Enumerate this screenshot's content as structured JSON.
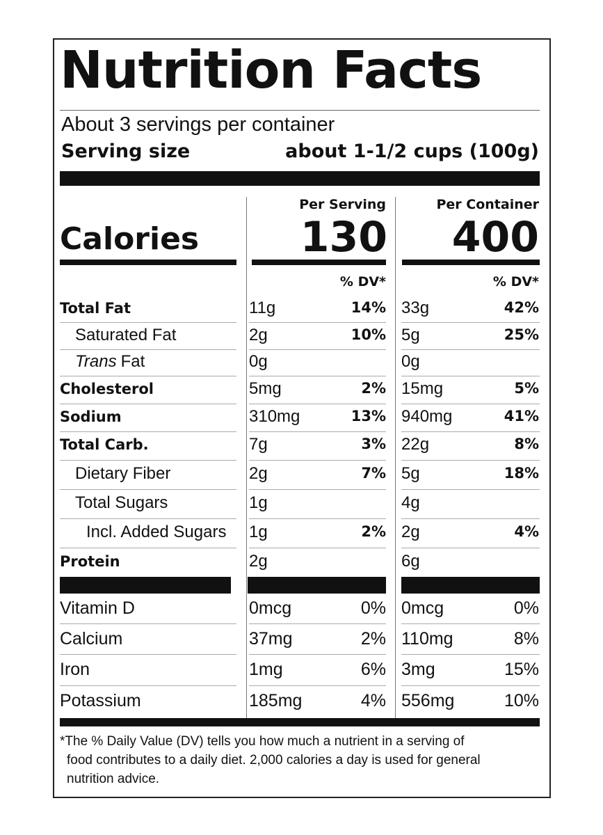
{
  "title": "Nutrition Facts",
  "servings": "About 3 servings per container",
  "serving_size": {
    "label": "Serving size",
    "value": "about 1-1/2 cups (100g)"
  },
  "calories_label": "Calories",
  "columns": [
    {
      "header": "Per Serving",
      "calories": "130"
    },
    {
      "header": "Per Container",
      "calories": "400"
    }
  ],
  "dv_header": "% DV*",
  "nutrients": [
    {
      "name": "Total Fat",
      "serving": [
        "11g",
        "14%"
      ],
      "container": [
        "33g",
        "42%"
      ]
    },
    {
      "name": "Saturated Fat",
      "serving": [
        "2g",
        "10%"
      ],
      "container": [
        "5g",
        "25%"
      ]
    },
    {
      "name_italic": "Trans",
      "name": "Fat",
      "serving": [
        "0g"
      ],
      "container": [
        "0g"
      ]
    },
    {
      "name": "Cholesterol",
      "serving": [
        "5mg",
        "2%"
      ],
      "container": [
        "15mg",
        "5%"
      ]
    },
    {
      "name": "Sodium",
      "serving": [
        "310mg",
        "13%"
      ],
      "container": [
        "940mg",
        "41%"
      ]
    },
    {
      "name": "Total Carb.",
      "serving": [
        "7g",
        "3%"
      ],
      "container": [
        "22g",
        "8%"
      ]
    },
    {
      "name": "Dietary Fiber",
      "serving": [
        "2g",
        "7%"
      ],
      "container": [
        "5g",
        "18%"
      ]
    },
    {
      "name": "Total Sugars",
      "serving": [
        "1g"
      ],
      "container": [
        "4g"
      ]
    },
    {
      "name": "Incl. Added Sugars",
      "serving": [
        "1g",
        "2%"
      ],
      "container": [
        "2g",
        "4%"
      ]
    },
    {
      "name": "Protein",
      "serving": [
        "2g"
      ],
      "container": [
        "6g"
      ]
    }
  ],
  "vitamins": [
    {
      "name": "Vitamin D",
      "serving": [
        "0mcg",
        "0%"
      ],
      "container": [
        "0mcg",
        "0%"
      ]
    },
    {
      "name": "Calcium",
      "serving": [
        "37mg",
        "2%"
      ],
      "container": [
        "110mg",
        "8%"
      ]
    },
    {
      "name": "Iron",
      "serving": [
        "1mg",
        "6%"
      ],
      "container": [
        "3mg",
        "15%"
      ]
    },
    {
      "name": "Potassium",
      "serving": [
        "185mg",
        "4%"
      ],
      "container": [
        "556mg",
        "10%"
      ]
    }
  ],
  "footnote": [
    "*The % Daily Value (DV) tells you how much a nutrient in a serving of",
    "food contributes to a daily diet. 2,000 calories a day is used for general",
    "nutrition advice."
  ]
}
